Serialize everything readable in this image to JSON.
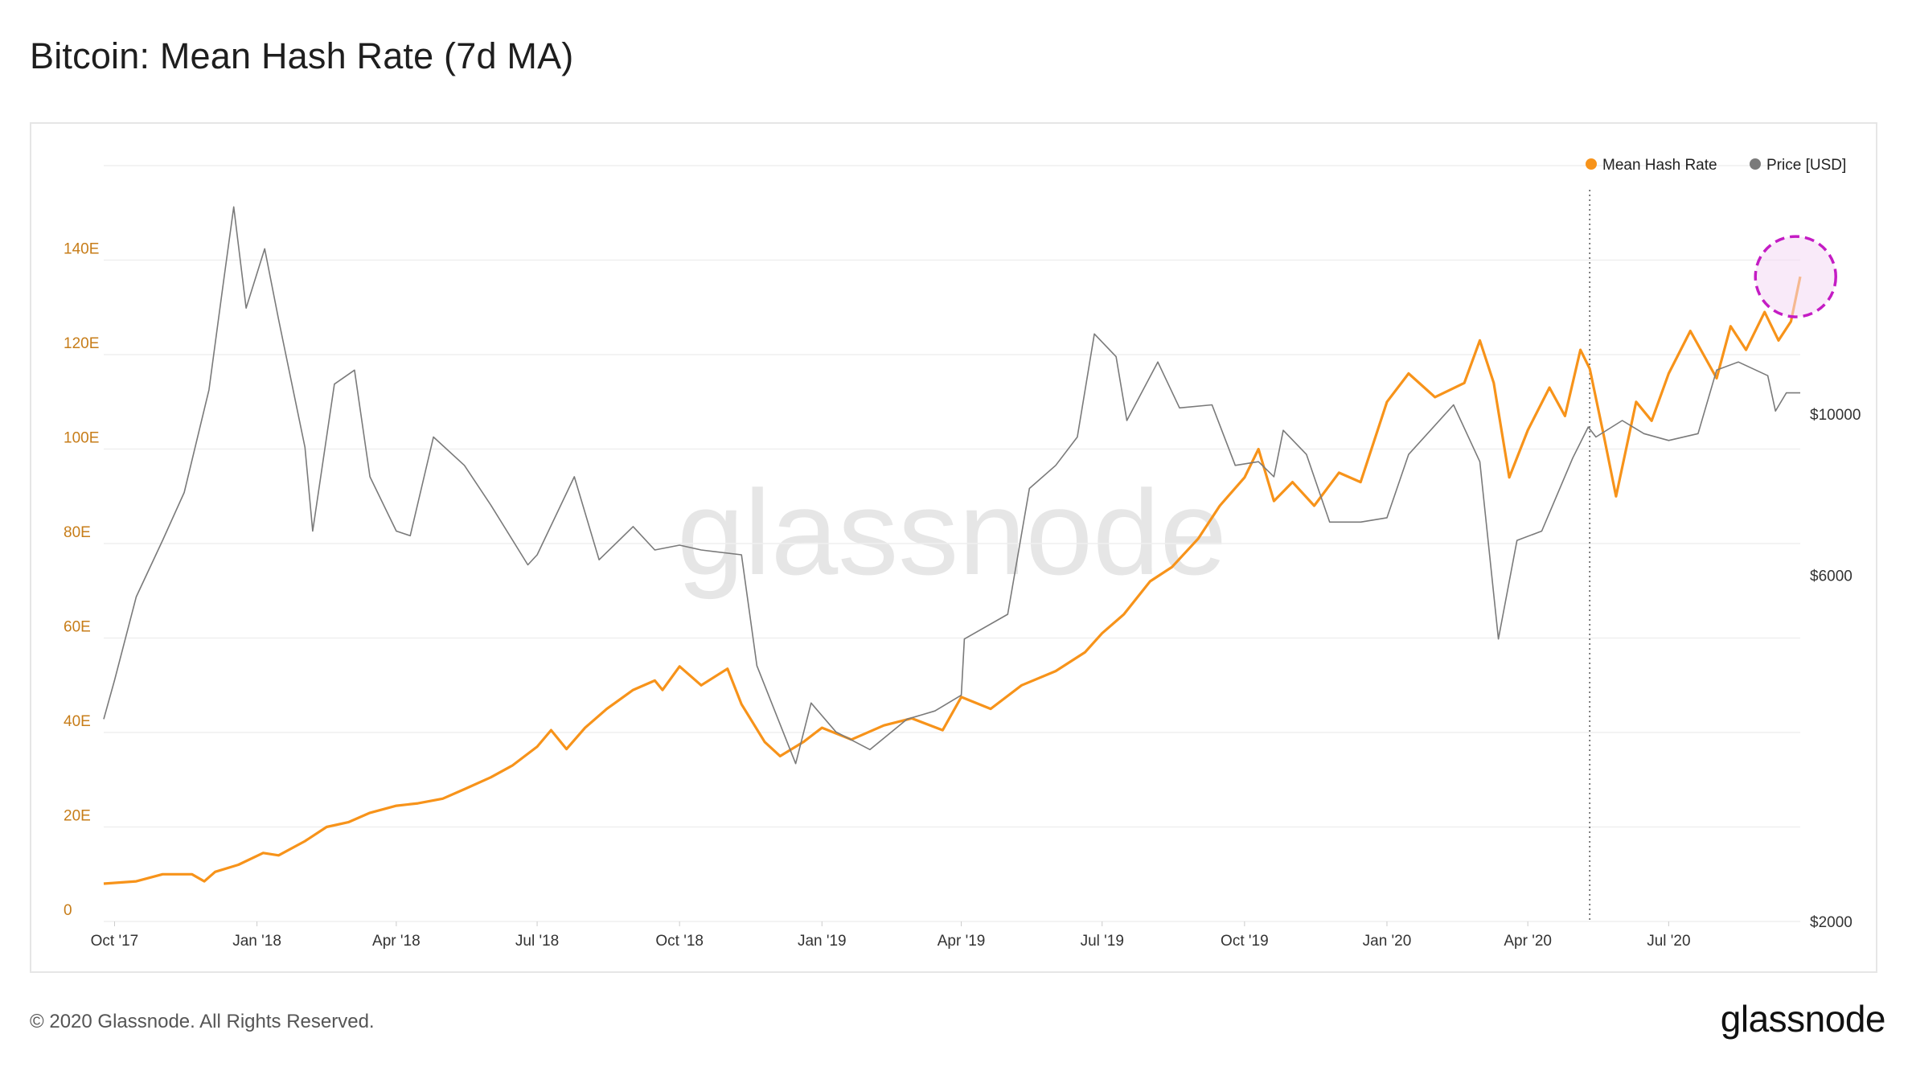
{
  "page": {
    "title": "Bitcoin: Mean Hash Rate (7d MA)",
    "copyright": "© 2020 Glassnode. All Rights Reserved.",
    "logo": "glassnode",
    "watermark": "glassnode"
  },
  "colors": {
    "hash_rate": "#f7931a",
    "price": "#7a7a7a",
    "left_axis_text": "#c77d19",
    "grid": "#efefef",
    "highlight_stroke": "#c41cc4",
    "highlight_fill": "#f4d8f4",
    "watermark": "#e6e6e6"
  },
  "chart_data": {
    "type": "line",
    "title": "Bitcoin: Mean Hash Rate (7d MA)",
    "legend_position": "top-right",
    "grid": true,
    "x_range": [
      "2017-09-24",
      "2020-09-24"
    ],
    "x_ticks": [
      {
        "label": "Oct '17",
        "date": "2017-10-01"
      },
      {
        "label": "Jan '18",
        "date": "2018-01-01"
      },
      {
        "label": "Apr '18",
        "date": "2018-04-01"
      },
      {
        "label": "Jul '18",
        "date": "2018-07-01"
      },
      {
        "label": "Oct '18",
        "date": "2018-10-01"
      },
      {
        "label": "Jan '19",
        "date": "2019-01-01"
      },
      {
        "label": "Apr '19",
        "date": "2019-04-01"
      },
      {
        "label": "Jul '19",
        "date": "2019-07-01"
      },
      {
        "label": "Oct '19",
        "date": "2019-10-01"
      },
      {
        "label": "Jan '20",
        "date": "2020-01-01"
      },
      {
        "label": "Apr '20",
        "date": "2020-04-01"
      },
      {
        "label": "Jul '20",
        "date": "2020-07-01"
      }
    ],
    "y_left": {
      "scale": "linear",
      "unit": "EH/s",
      "range": [
        0,
        160
      ],
      "ticks": [
        {
          "value": 0,
          "label": "0"
        },
        {
          "value": 20,
          "label": "20E"
        },
        {
          "value": 40,
          "label": "40E"
        },
        {
          "value": 60,
          "label": "60E"
        },
        {
          "value": 80,
          "label": "80E"
        },
        {
          "value": 100,
          "label": "100E"
        },
        {
          "value": 120,
          "label": "120E"
        },
        {
          "value": 140,
          "label": "140E"
        }
      ]
    },
    "y_right": {
      "scale": "log",
      "unit": "USD",
      "range": [
        2000,
        22000
      ],
      "ticks": [
        {
          "value": 2000,
          "label": "$2000"
        },
        {
          "value": 6000,
          "label": "$6000"
        },
        {
          "value": 10000,
          "label": "$10000"
        }
      ]
    },
    "series": [
      {
        "name": "Mean Hash Rate",
        "axis": "left",
        "color": "#f7931a",
        "points": [
          [
            "2017-09-24",
            8.0
          ],
          [
            "2017-10-15",
            8.5
          ],
          [
            "2017-11-01",
            10
          ],
          [
            "2017-11-20",
            10
          ],
          [
            "2017-11-28",
            8.5
          ],
          [
            "2017-12-05",
            10.5
          ],
          [
            "2017-12-20",
            12
          ],
          [
            "2018-01-05",
            14.5
          ],
          [
            "2018-01-15",
            14
          ],
          [
            "2018-02-01",
            17
          ],
          [
            "2018-02-15",
            20
          ],
          [
            "2018-03-01",
            21
          ],
          [
            "2018-03-15",
            23
          ],
          [
            "2018-04-01",
            24.5
          ],
          [
            "2018-04-15",
            25
          ],
          [
            "2018-05-01",
            26
          ],
          [
            "2018-05-15",
            28
          ],
          [
            "2018-06-01",
            30.5
          ],
          [
            "2018-06-15",
            33
          ],
          [
            "2018-07-01",
            37
          ],
          [
            "2018-07-10",
            40.5
          ],
          [
            "2018-07-20",
            36.5
          ],
          [
            "2018-08-01",
            41
          ],
          [
            "2018-08-15",
            45
          ],
          [
            "2018-09-01",
            49
          ],
          [
            "2018-09-15",
            51
          ],
          [
            "2018-09-20",
            49
          ],
          [
            "2018-10-01",
            54
          ],
          [
            "2018-10-15",
            50
          ],
          [
            "2018-11-01",
            53.5
          ],
          [
            "2018-11-10",
            46
          ],
          [
            "2018-11-25",
            38
          ],
          [
            "2018-12-05",
            35
          ],
          [
            "2018-12-20",
            38
          ],
          [
            "2019-01-01",
            41
          ],
          [
            "2019-01-20",
            38.5
          ],
          [
            "2019-02-10",
            41.5
          ],
          [
            "2019-02-28",
            43
          ],
          [
            "2019-03-20",
            40.5
          ],
          [
            "2019-04-01",
            47.5
          ],
          [
            "2019-04-20",
            45
          ],
          [
            "2019-05-10",
            50
          ],
          [
            "2019-06-01",
            53
          ],
          [
            "2019-06-20",
            57
          ],
          [
            "2019-07-01",
            61
          ],
          [
            "2019-07-15",
            65
          ],
          [
            "2019-08-01",
            72
          ],
          [
            "2019-08-15",
            75
          ],
          [
            "2019-09-01",
            81
          ],
          [
            "2019-09-15",
            88
          ],
          [
            "2019-10-01",
            94
          ],
          [
            "2019-10-10",
            100
          ],
          [
            "2019-10-20",
            89
          ],
          [
            "2019-11-01",
            93
          ],
          [
            "2019-11-15",
            88
          ],
          [
            "2019-12-01",
            95
          ],
          [
            "2019-12-15",
            93
          ],
          [
            "2020-01-01",
            110
          ],
          [
            "2020-01-15",
            116
          ],
          [
            "2020-02-01",
            111
          ],
          [
            "2020-02-20",
            114
          ],
          [
            "2020-03-01",
            123
          ],
          [
            "2020-03-10",
            114
          ],
          [
            "2020-03-20",
            94
          ],
          [
            "2020-04-01",
            104
          ],
          [
            "2020-04-15",
            113
          ],
          [
            "2020-04-25",
            107
          ],
          [
            "2020-05-05",
            121
          ],
          [
            "2020-05-11",
            117
          ],
          [
            "2020-05-20",
            103
          ],
          [
            "2020-05-28",
            90
          ],
          [
            "2020-06-10",
            110
          ],
          [
            "2020-06-20",
            106
          ],
          [
            "2020-07-01",
            116
          ],
          [
            "2020-07-15",
            125
          ],
          [
            "2020-08-01",
            115
          ],
          [
            "2020-08-10",
            126
          ],
          [
            "2020-08-20",
            121
          ],
          [
            "2020-09-01",
            129
          ],
          [
            "2020-09-10",
            123
          ],
          [
            "2020-09-18",
            127
          ],
          [
            "2020-09-24",
            136.5
          ]
        ]
      },
      {
        "name": "Price [USD]",
        "axis": "right",
        "color": "#7a7a7a",
        "points": [
          [
            "2017-09-24",
            3800
          ],
          [
            "2017-10-01",
            4300
          ],
          [
            "2017-10-15",
            5600
          ],
          [
            "2017-11-01",
            6700
          ],
          [
            "2017-11-15",
            7800
          ],
          [
            "2017-12-01",
            10800
          ],
          [
            "2017-12-10",
            15000
          ],
          [
            "2017-12-17",
            19300
          ],
          [
            "2017-12-25",
            14000
          ],
          [
            "2018-01-06",
            16900
          ],
          [
            "2018-01-15",
            13500
          ],
          [
            "2018-02-01",
            9000
          ],
          [
            "2018-02-06",
            6900
          ],
          [
            "2018-02-20",
            11000
          ],
          [
            "2018-03-05",
            11500
          ],
          [
            "2018-03-15",
            8200
          ],
          [
            "2018-04-01",
            6900
          ],
          [
            "2018-04-10",
            6800
          ],
          [
            "2018-04-25",
            9300
          ],
          [
            "2018-05-15",
            8500
          ],
          [
            "2018-06-01",
            7500
          ],
          [
            "2018-06-25",
            6200
          ],
          [
            "2018-07-01",
            6400
          ],
          [
            "2018-07-25",
            8200
          ],
          [
            "2018-08-10",
            6300
          ],
          [
            "2018-09-01",
            7000
          ],
          [
            "2018-09-15",
            6500
          ],
          [
            "2018-10-01",
            6600
          ],
          [
            "2018-10-15",
            6500
          ],
          [
            "2018-11-10",
            6400
          ],
          [
            "2018-11-20",
            4500
          ],
          [
            "2018-12-15",
            3300
          ],
          [
            "2018-12-25",
            4000
          ],
          [
            "2019-01-10",
            3650
          ],
          [
            "2019-02-01",
            3450
          ],
          [
            "2019-02-25",
            3800
          ],
          [
            "2019-03-15",
            3900
          ],
          [
            "2019-04-01",
            4100
          ],
          [
            "2019-04-03",
            4900
          ],
          [
            "2019-05-01",
            5300
          ],
          [
            "2019-05-15",
            7900
          ],
          [
            "2019-06-01",
            8500
          ],
          [
            "2019-06-15",
            9300
          ],
          [
            "2019-06-26",
            12900
          ],
          [
            "2019-07-10",
            12000
          ],
          [
            "2019-07-17",
            9800
          ],
          [
            "2019-08-06",
            11800
          ],
          [
            "2019-08-20",
            10200
          ],
          [
            "2019-09-10",
            10300
          ],
          [
            "2019-09-25",
            8500
          ],
          [
            "2019-10-10",
            8600
          ],
          [
            "2019-10-20",
            8200
          ],
          [
            "2019-10-26",
            9500
          ],
          [
            "2019-11-10",
            8800
          ],
          [
            "2019-11-25",
            7100
          ],
          [
            "2019-12-15",
            7100
          ],
          [
            "2020-01-01",
            7200
          ],
          [
            "2020-01-15",
            8800
          ],
          [
            "2020-02-13",
            10300
          ],
          [
            "2020-03-01",
            8600
          ],
          [
            "2020-03-13",
            4900
          ],
          [
            "2020-03-25",
            6700
          ],
          [
            "2020-04-10",
            6900
          ],
          [
            "2020-04-30",
            8700
          ],
          [
            "2020-05-10",
            9600
          ],
          [
            "2020-05-15",
            9300
          ],
          [
            "2020-06-01",
            9800
          ],
          [
            "2020-06-15",
            9400
          ],
          [
            "2020-07-01",
            9200
          ],
          [
            "2020-07-20",
            9400
          ],
          [
            "2020-08-01",
            11500
          ],
          [
            "2020-08-15",
            11800
          ],
          [
            "2020-09-03",
            11300
          ],
          [
            "2020-09-08",
            10100
          ],
          [
            "2020-09-15",
            10700
          ],
          [
            "2020-09-24",
            10700
          ]
        ]
      }
    ],
    "annotations": [
      {
        "type": "vertical-dotted-line",
        "date": "2020-05-11"
      },
      {
        "type": "highlight-circle",
        "date": "2020-09-21",
        "value": 136.5,
        "axis": "left"
      }
    ]
  }
}
